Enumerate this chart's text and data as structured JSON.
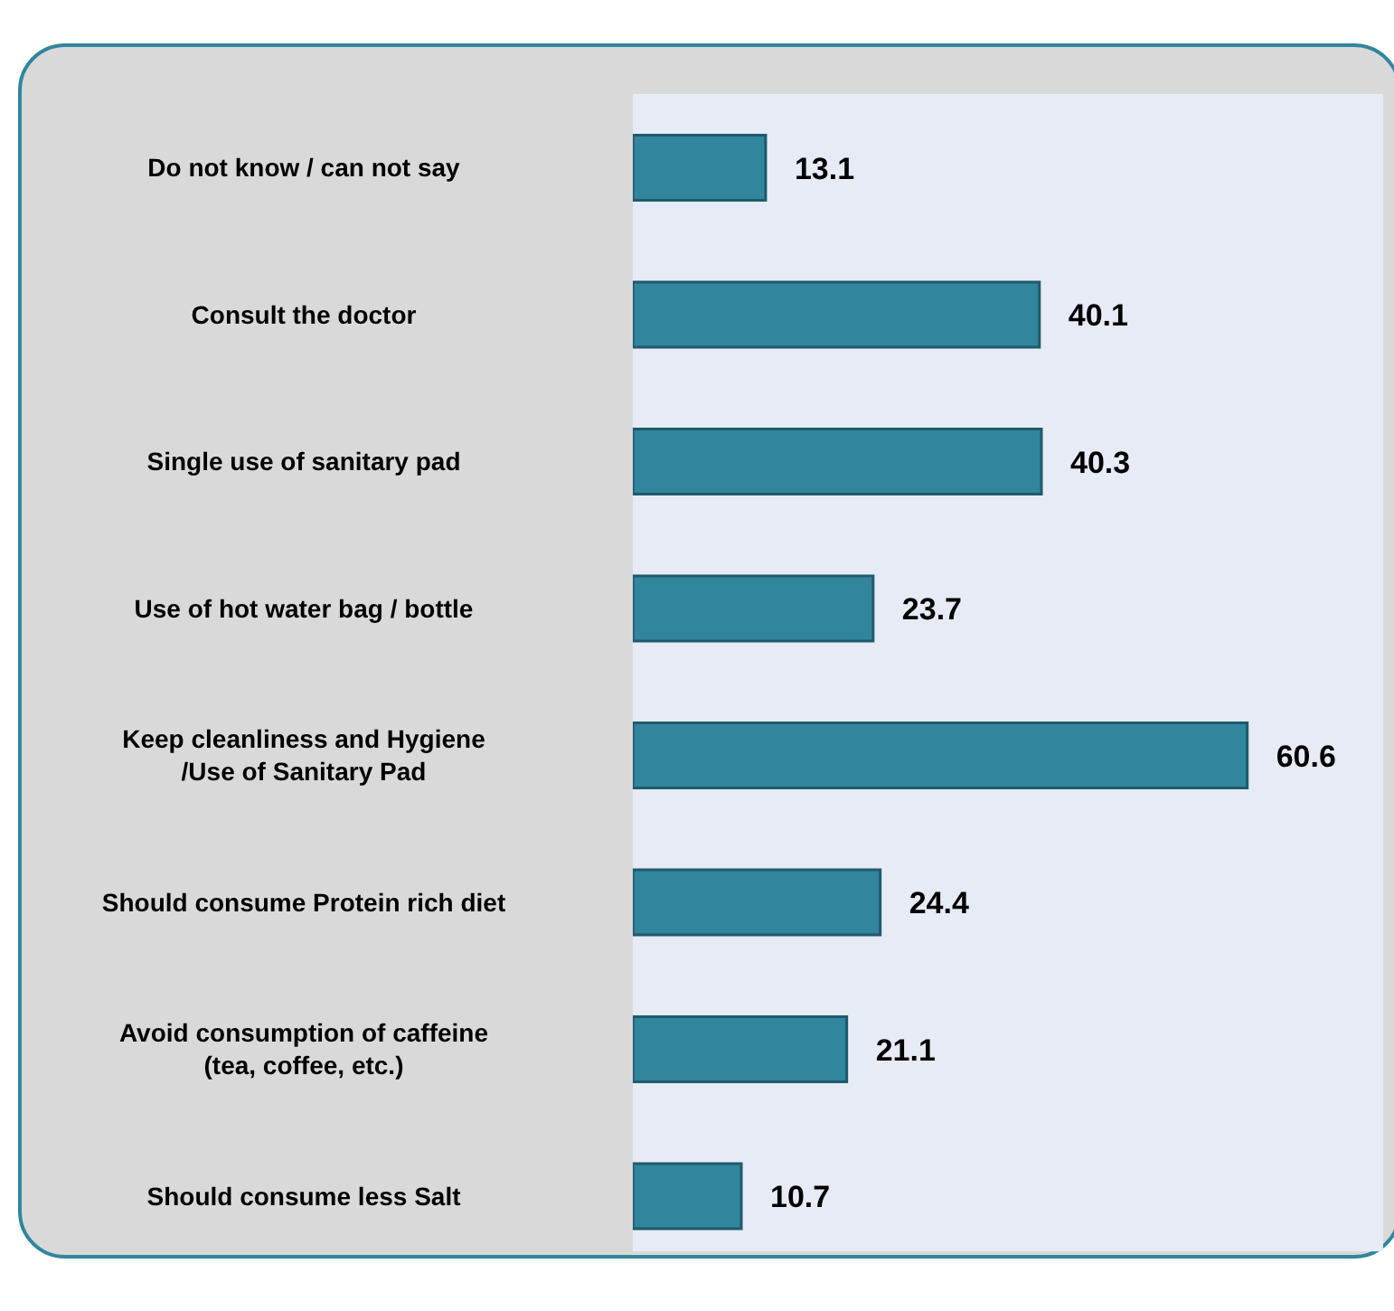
{
  "chart_data": {
    "type": "bar",
    "orientation": "horizontal",
    "categories": [
      "Do not know / can not say",
      "Consult the doctor",
      "Single use of sanitary pad",
      "Use of hot water bag / bottle",
      "Keep cleanliness and Hygiene /Use of Sanitary  Pad",
      "Should consume Protein rich diet",
      "Avoid consumption of caffeine (tea, coffee, etc.)",
      "Should consume less Salt"
    ],
    "values": [
      13.1,
      40.1,
      40.3,
      23.7,
      60.6,
      24.4,
      21.1,
      10.7
    ],
    "color": "#31859c",
    "xlim": [
      0,
      74
    ],
    "data_labels": true,
    "tick_labels": "y",
    "grid": false,
    "legend": false
  }
}
